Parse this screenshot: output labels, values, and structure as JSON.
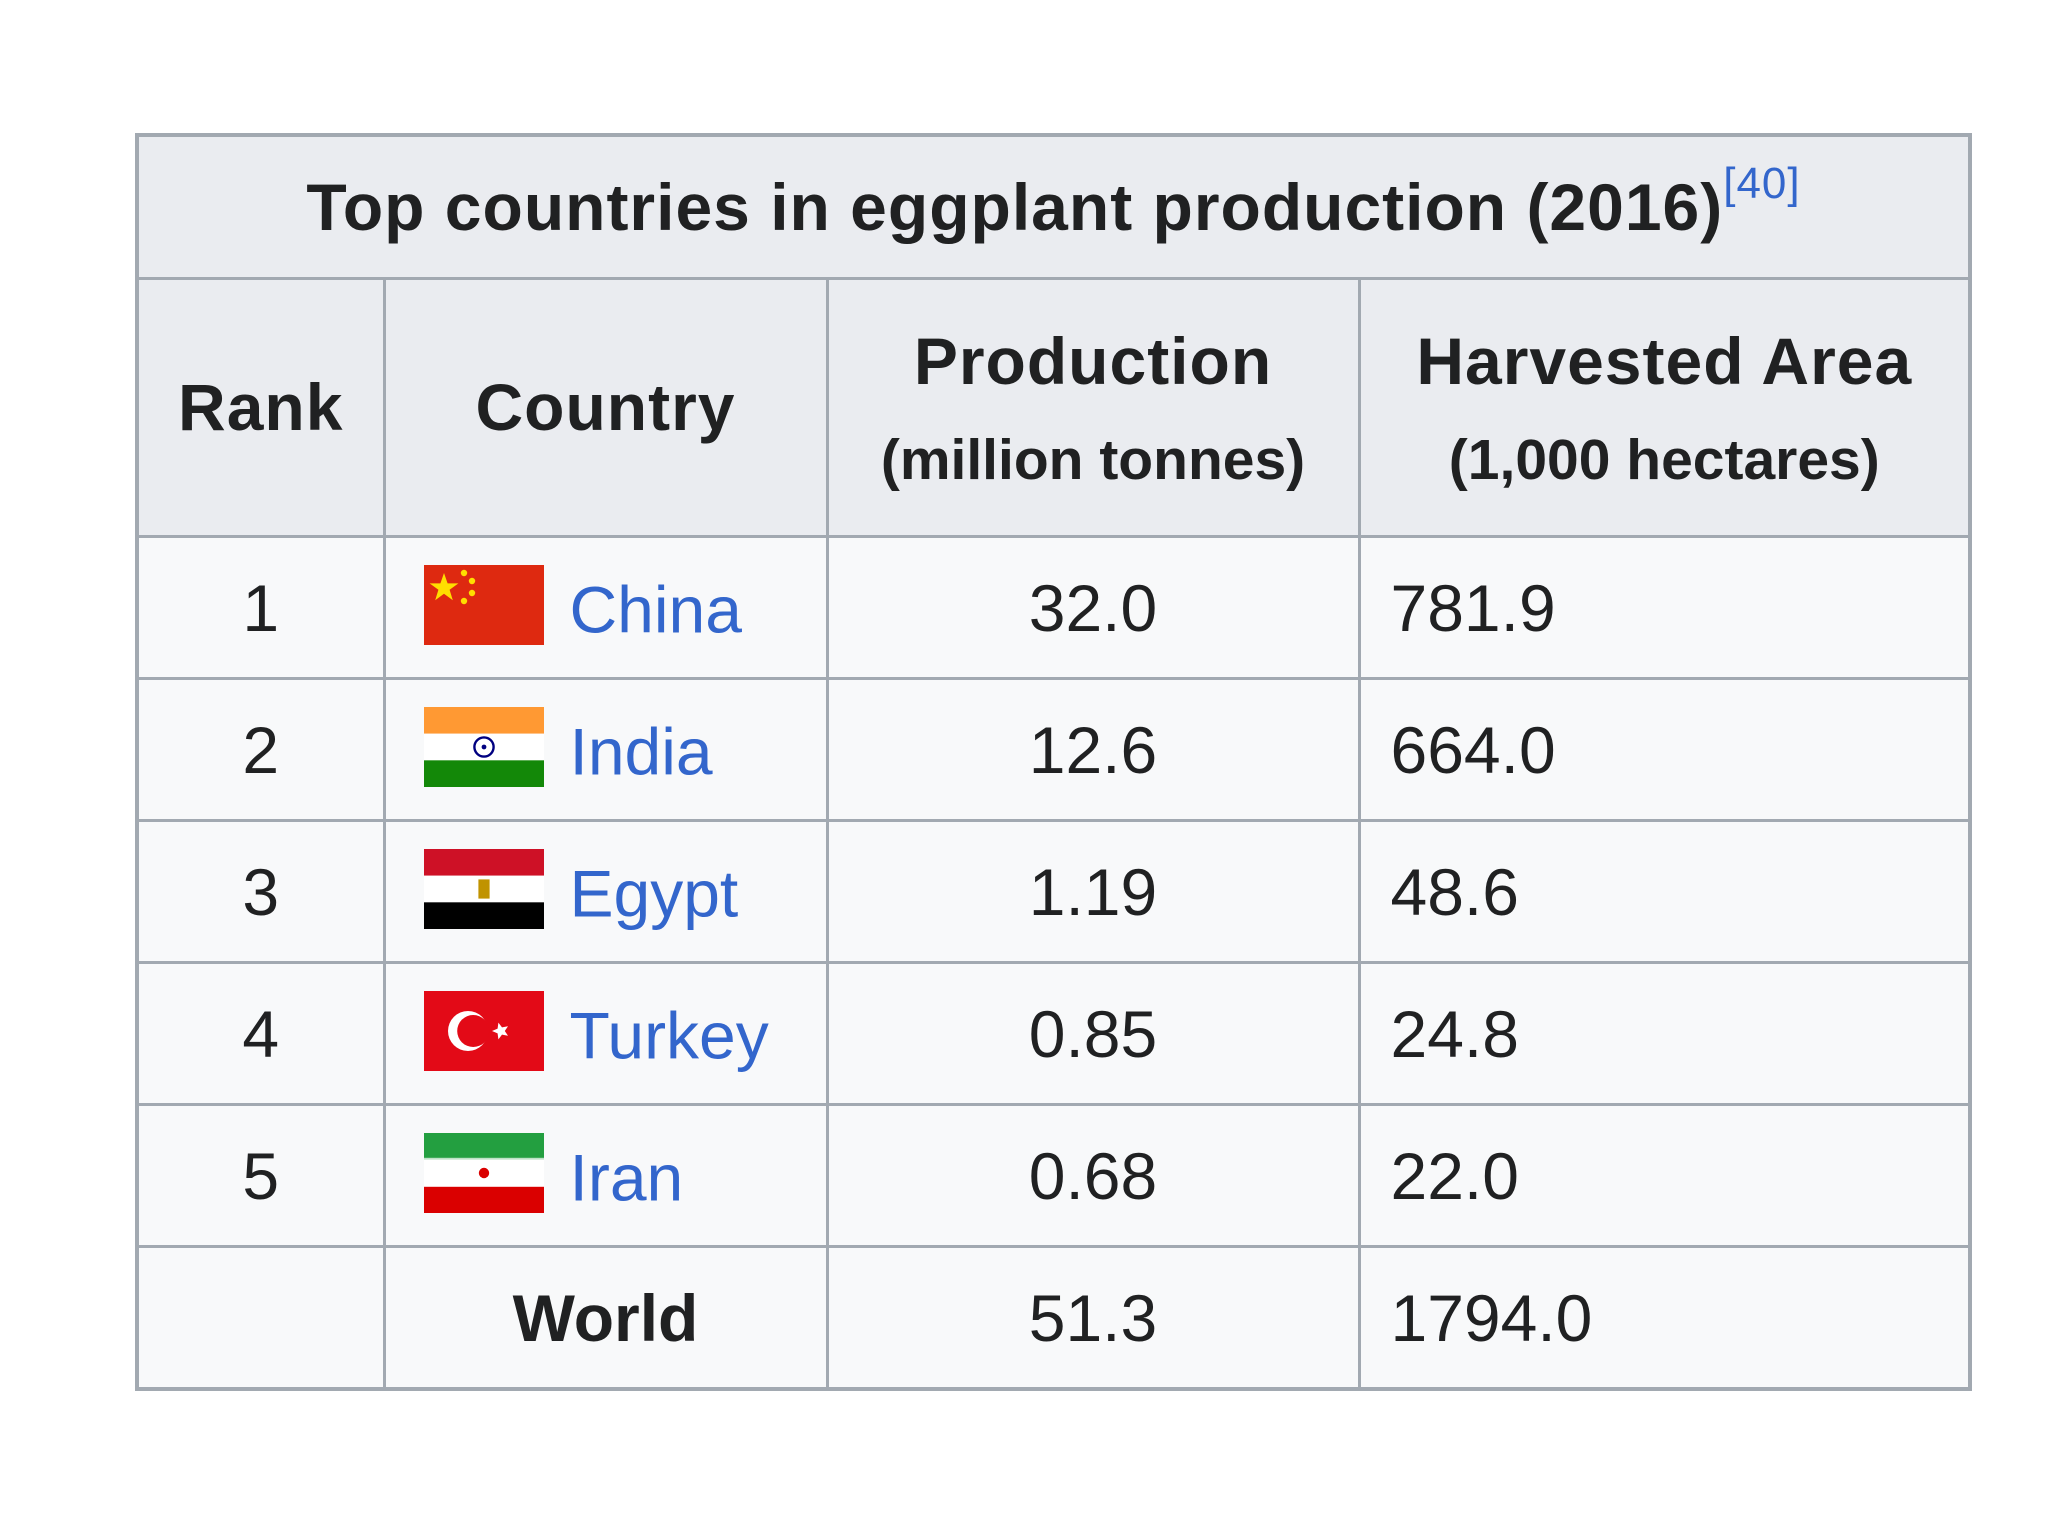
{
  "table": {
    "title": "Top countries in eggplant production (2016)",
    "reference": "[40]",
    "headers": {
      "rank": "Rank",
      "country": "Country",
      "production": "Production",
      "production_unit": "(million tonnes)",
      "area": "Harvested Area",
      "area_unit": "(1,000 hectares)"
    },
    "rows": [
      {
        "rank": "1",
        "country": "China",
        "flag": "china-flag-icon",
        "production": "32.0",
        "area": "781.9"
      },
      {
        "rank": "2",
        "country": "India",
        "flag": "india-flag-icon",
        "production": "12.6",
        "area": "664.0"
      },
      {
        "rank": "3",
        "country": "Egypt",
        "flag": "egypt-flag-icon",
        "production": "1.19",
        "area": "48.6"
      },
      {
        "rank": "4",
        "country": "Turkey",
        "flag": "turkey-flag-icon",
        "production": "0.85",
        "area": "24.8"
      },
      {
        "rank": "5",
        "country": "Iran",
        "flag": "iran-flag-icon",
        "production": "0.68",
        "area": "22.0"
      }
    ],
    "total": {
      "label": "World",
      "production": "51.3",
      "area": "1794.0"
    }
  },
  "colors": {
    "border": "#a2a9b1",
    "header_bg": "#eaecf0",
    "cell_bg": "#f8f9fa",
    "link": "#3366cc"
  }
}
